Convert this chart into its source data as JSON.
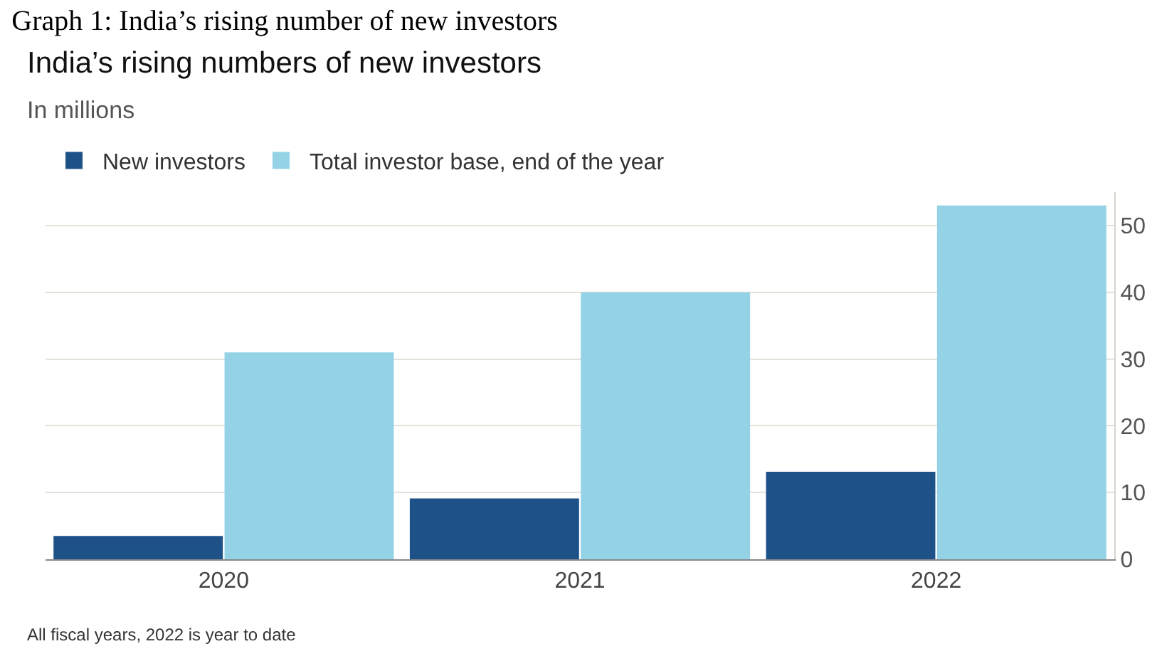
{
  "chart_data": {
    "type": "bar",
    "title": "Graph 1: India’s rising number of new investors",
    "subtitle": "India’s rising numbers of new investors",
    "ylabel": "In millions",
    "categories": [
      "2020",
      "2021",
      "2022"
    ],
    "series": [
      {
        "name": "New investors",
        "color": "#1f5189",
        "values": [
          3.5,
          9.1,
          13.1
        ]
      },
      {
        "name": "Total investor base, end of the year",
        "color": "#94d3e6",
        "values": [
          31.0,
          40.0,
          53.0
        ]
      }
    ],
    "ylim": [
      0,
      55
    ],
    "yticks": [
      0,
      10,
      20,
      30,
      40,
      50
    ],
    "grid": "y",
    "legend": "top left",
    "annotations": [
      "All fiscal years, 2022 is year to date"
    ]
  }
}
